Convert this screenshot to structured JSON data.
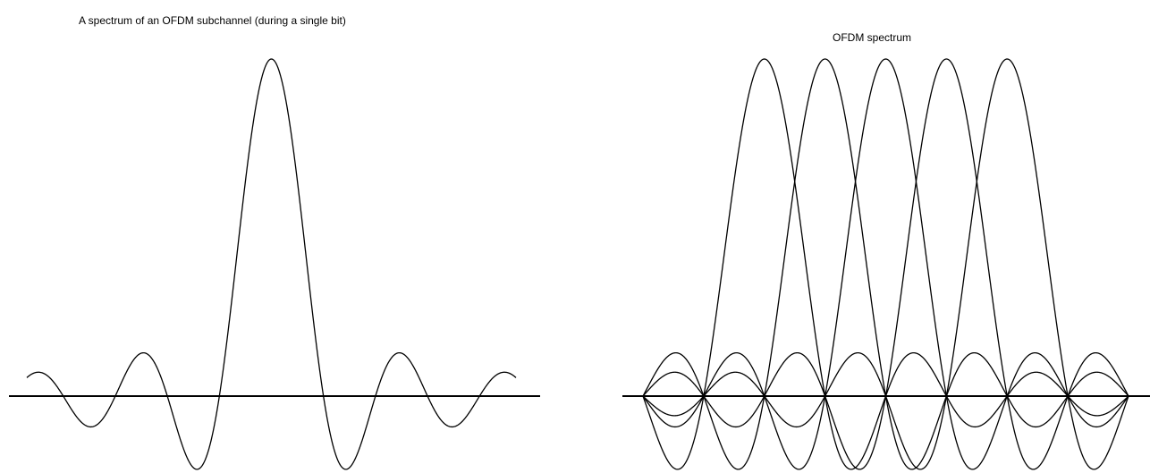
{
  "chart_data": [
    {
      "type": "line",
      "title": "A spectrum of an OFDM subchannel (during a single bit)",
      "xlabel": "",
      "ylabel": "",
      "xlim": [
        -4.7,
        4.7
      ],
      "ylim": [
        -0.22,
        1.0
      ],
      "grid": false,
      "legend": "none",
      "series": [
        {
          "function": "sinc",
          "center": 0
        }
      ]
    },
    {
      "type": "line",
      "title": "OFDM spectrum",
      "xlabel": "",
      "ylabel": "",
      "xlim": [
        -1.0,
        7.0
      ],
      "ylim": [
        -0.22,
        1.0
      ],
      "grid": false,
      "legend": "none",
      "series": [
        {
          "function": "sinc",
          "center": 1
        },
        {
          "function": "sinc",
          "center": 2
        },
        {
          "function": "sinc",
          "center": 3
        },
        {
          "function": "sinc",
          "center": 4
        },
        {
          "function": "sinc",
          "center": 5
        }
      ]
    }
  ],
  "colors": {
    "ink": "#000000",
    "background": "#ffffff"
  }
}
